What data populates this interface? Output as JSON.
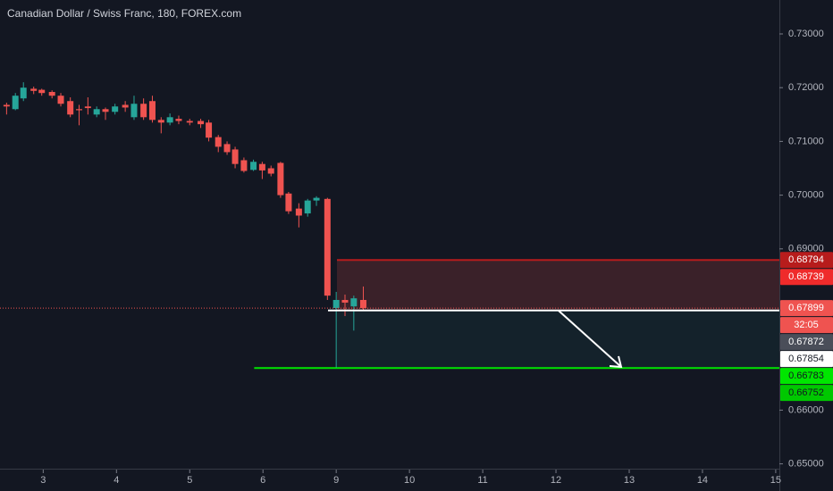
{
  "chart_data": {
    "type": "candlestick",
    "title": "Canadian Dollar / Swiss Franc, 180, FOREX.com",
    "up_color": "#26a69a",
    "down_color": "#ef5350",
    "x": [
      2.5,
      2.62,
      2.73,
      2.87,
      2.98,
      3.12,
      3.24,
      3.37,
      3.49,
      3.61,
      3.73,
      3.85,
      3.98,
      4.12,
      4.24,
      4.37,
      4.49,
      4.61,
      4.73,
      4.85,
      5.0,
      5.15,
      5.26,
      5.39,
      5.51,
      5.62,
      5.74,
      5.87,
      5.99,
      6.11,
      6.24,
      6.35,
      6.49,
      6.61,
      6.73,
      6.88,
      7.0,
      7.12,
      7.24,
      7.37
    ],
    "open": [
      0.7168,
      0.716,
      0.718,
      0.7198,
      0.7196,
      0.7192,
      0.7185,
      0.7175,
      0.716,
      0.7165,
      0.715,
      0.716,
      0.7155,
      0.7168,
      0.7145,
      0.717,
      0.7175,
      0.714,
      0.7135,
      0.7142,
      0.7138,
      0.7138,
      0.7135,
      0.7108,
      0.7095,
      0.7085,
      0.7065,
      0.7047,
      0.7058,
      0.705,
      0.706,
      0.7003,
      0.6975,
      0.6966,
      0.699,
      0.6993,
      0.679,
      0.6805,
      0.6793,
      0.6805
    ],
    "high": [
      0.7172,
      0.719,
      0.721,
      0.7202,
      0.7198,
      0.7195,
      0.719,
      0.7182,
      0.7168,
      0.7182,
      0.7165,
      0.7163,
      0.717,
      0.7175,
      0.7185,
      0.718,
      0.7185,
      0.7145,
      0.7152,
      0.7148,
      0.7142,
      0.7142,
      0.714,
      0.7112,
      0.71,
      0.709,
      0.707,
      0.7066,
      0.7062,
      0.7055,
      0.7062,
      0.7006,
      0.6985,
      0.6993,
      0.6998,
      0.6995,
      0.682,
      0.6815,
      0.6813,
      0.683
    ],
    "low": [
      0.715,
      0.7158,
      0.7175,
      0.7188,
      0.7185,
      0.718,
      0.7165,
      0.7145,
      0.713,
      0.715,
      0.7145,
      0.714,
      0.715,
      0.7155,
      0.714,
      0.714,
      0.7135,
      0.7115,
      0.713,
      0.7132,
      0.713,
      0.7125,
      0.71,
      0.708,
      0.7075,
      0.705,
      0.7042,
      0.7045,
      0.703,
      0.7035,
      0.6995,
      0.6965,
      0.694,
      0.696,
      0.698,
      0.6805,
      0.6679,
      0.6775,
      0.6748,
      0.6785
    ],
    "close": [
      0.7165,
      0.7185,
      0.72,
      0.7194,
      0.719,
      0.7185,
      0.717,
      0.715,
      0.7158,
      0.7162,
      0.716,
      0.7155,
      0.7165,
      0.7163,
      0.717,
      0.7145,
      0.714,
      0.7135,
      0.7145,
      0.7138,
      0.7135,
      0.7132,
      0.7107,
      0.709,
      0.708,
      0.7058,
      0.7045,
      0.7062,
      0.7046,
      0.704,
      0.7,
      0.697,
      0.6962,
      0.699,
      0.6995,
      0.6813,
      0.6805,
      0.68,
      0.6808,
      0.679
    ],
    "xlim": [
      2.41,
      13.05
    ],
    "xticks": [
      {
        "value": 3,
        "label": "3"
      },
      {
        "value": 4,
        "label": "4"
      },
      {
        "value": 5,
        "label": "5"
      },
      {
        "value": 6,
        "label": "6"
      },
      {
        "value": 7,
        "label": "9"
      },
      {
        "value": 8,
        "label": "10"
      },
      {
        "value": 9,
        "label": "11"
      },
      {
        "value": 10,
        "label": "12"
      },
      {
        "value": 11,
        "label": "13"
      },
      {
        "value": 12,
        "label": "14"
      },
      {
        "value": 13,
        "label": "15"
      }
    ],
    "ylim": [
      0.64495,
      0.73631
    ],
    "yticks": [
      {
        "value": 0.73,
        "label": "0.73000"
      },
      {
        "value": 0.72,
        "label": "0.72000"
      },
      {
        "value": 0.71,
        "label": "0.71000"
      },
      {
        "value": 0.7,
        "label": "0.70000"
      },
      {
        "value": 0.69,
        "label": "0.69000"
      },
      {
        "value": 0.66,
        "label": "0.66000"
      },
      {
        "value": 0.65,
        "label": "0.65000"
      }
    ],
    "last_price": 0.67899,
    "position": {
      "start": 7.01,
      "stop": 0.68794,
      "entry": 0.67854,
      "target": 0.66783
    },
    "horizontal_line": {
      "start": 5.88,
      "value": 0.66783,
      "color": "#00e600"
    },
    "price_labels": [
      {
        "value": 0.68794,
        "bg": "#b71c1c",
        "fg": "#ffffff"
      },
      {
        "value": 0.68739,
        "bg": "#ef2b2b",
        "fg": "#ffffff"
      },
      {
        "value": 0.67899,
        "bg": "#ef5350",
        "fg": "#ffffff"
      },
      {
        "label": "32:05",
        "bg": "#ef5350",
        "fg": "#ffffff"
      },
      {
        "value": 0.67872,
        "bg": "#4a4e59",
        "fg": "#ffffff"
      },
      {
        "value": 0.67854,
        "bg": "#ffffff",
        "fg": "#131722"
      },
      {
        "value": 0.66783,
        "bg": "#00e600",
        "fg": "#131722"
      },
      {
        "value": 0.66752,
        "bg": "#00c800",
        "fg": "#131722"
      }
    ]
  }
}
